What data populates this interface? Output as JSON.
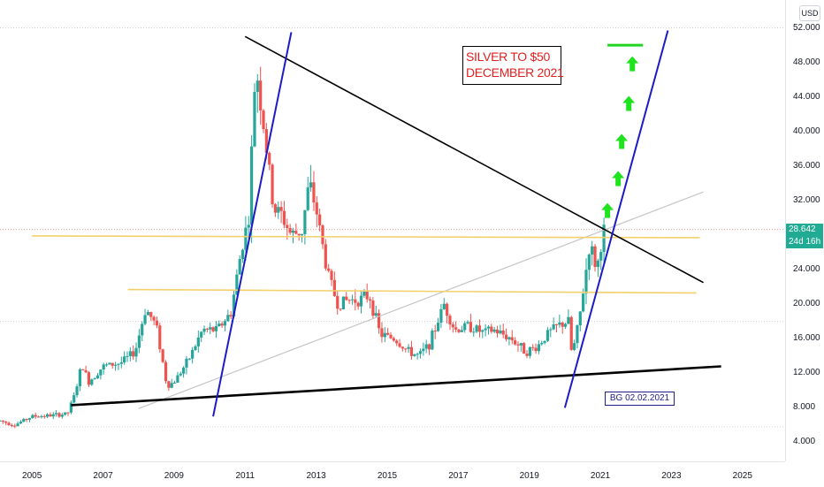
{
  "chart_data": {
    "type": "candlestick",
    "title": "",
    "currency": "USD",
    "y_ticks": [
      "4.000",
      "8.000",
      "12.000",
      "16.000",
      "20.000",
      "24.000",
      "28.000",
      "32.000",
      "36.000",
      "40.000",
      "44.000",
      "48.000",
      "52.000"
    ],
    "x_ticks": [
      "2005",
      "2007",
      "2009",
      "2011",
      "2013",
      "2015",
      "2017",
      "2019",
      "2021",
      "2023",
      "2025"
    ],
    "ylim": [
      2,
      54
    ],
    "xlim": [
      2004.1,
      2026.2
    ],
    "last_price": "28.642",
    "countdown": "24d 16h",
    "annotations": {
      "callout_line1": "SILVER TO $50",
      "callout_line2": "DECEMBER 2021",
      "signature": "BG 02.02.2021"
    },
    "price_path": [
      [
        2004.1,
        6.5
      ],
      [
        2004.5,
        6.0
      ],
      [
        2005.0,
        7.0
      ],
      [
        2005.5,
        7.1
      ],
      [
        2006.0,
        7.3
      ],
      [
        2006.2,
        9.5
      ],
      [
        2006.4,
        13.0
      ],
      [
        2006.6,
        11.0
      ],
      [
        2007.0,
        12.8
      ],
      [
        2007.5,
        13.2
      ],
      [
        2007.9,
        14.5
      ],
      [
        2008.2,
        19.5
      ],
      [
        2008.5,
        17.5
      ],
      [
        2008.8,
        10.5
      ],
      [
        2009.0,
        11.0
      ],
      [
        2009.4,
        13.5
      ],
      [
        2009.8,
        17.0
      ],
      [
        2010.2,
        17.0
      ],
      [
        2010.6,
        19.0
      ],
      [
        2010.9,
        26.5
      ],
      [
        2011.1,
        30.0
      ],
      [
        2011.3,
        48.0
      ],
      [
        2011.6,
        38.0
      ],
      [
        2011.8,
        31.0
      ],
      [
        2012.0,
        30.5
      ],
      [
        2012.3,
        28.0
      ],
      [
        2012.6,
        28.5
      ],
      [
        2012.8,
        34.0
      ],
      [
        2013.0,
        31.0
      ],
      [
        2013.3,
        24.0
      ],
      [
        2013.6,
        20.0
      ],
      [
        2013.9,
        20.5
      ],
      [
        2014.2,
        20.5
      ],
      [
        2014.5,
        21.0
      ],
      [
        2014.8,
        16.5
      ],
      [
        2015.2,
        16.0
      ],
      [
        2015.6,
        14.5
      ],
      [
        2015.9,
        14.0
      ],
      [
        2016.2,
        15.5
      ],
      [
        2016.6,
        20.0
      ],
      [
        2016.9,
        17.0
      ],
      [
        2017.3,
        17.5
      ],
      [
        2017.7,
        16.7
      ],
      [
        2018.0,
        17.0
      ],
      [
        2018.5,
        16.0
      ],
      [
        2018.9,
        14.5
      ],
      [
        2019.2,
        15.0
      ],
      [
        2019.5,
        16.5
      ],
      [
        2019.8,
        17.5
      ],
      [
        2020.1,
        18.0
      ],
      [
        2020.2,
        14.0
      ],
      [
        2020.4,
        18.0
      ],
      [
        2020.6,
        24.0
      ],
      [
        2020.7,
        27.0
      ],
      [
        2020.9,
        24.0
      ],
      [
        2021.0,
        26.5
      ],
      [
        2021.1,
        28.6
      ]
    ],
    "drawings": {
      "triangle_top": [
        [
          2011.0,
          51.0
        ],
        [
          2023.9,
          22.5
        ]
      ],
      "triangle_bottom": [
        [
          2006.1,
          8.3
        ],
        [
          2024.4,
          12.8
        ]
      ],
      "support_rising_thin": [
        [
          2008.0,
          7.9
        ],
        [
          2023.9,
          33.0
        ]
      ],
      "blue_steep_2010": [
        [
          2010.1,
          7.0
        ],
        [
          2012.3,
          51.5
        ]
      ],
      "blue_steep_2020": [
        [
          2020.0,
          8.0
        ],
        [
          2022.9,
          51.7
        ]
      ],
      "yellow_upper": [
        [
          2005.0,
          27.9
        ],
        [
          2023.8,
          27.7
        ]
      ],
      "yellow_lower": [
        [
          2007.7,
          21.7
        ],
        [
          2023.7,
          21.3
        ]
      ],
      "target_level": 50.0,
      "arrows_up_at_year": [
        2021.2,
        2021.5,
        2021.6,
        2021.8,
        2021.9
      ]
    },
    "grid": false
  }
}
